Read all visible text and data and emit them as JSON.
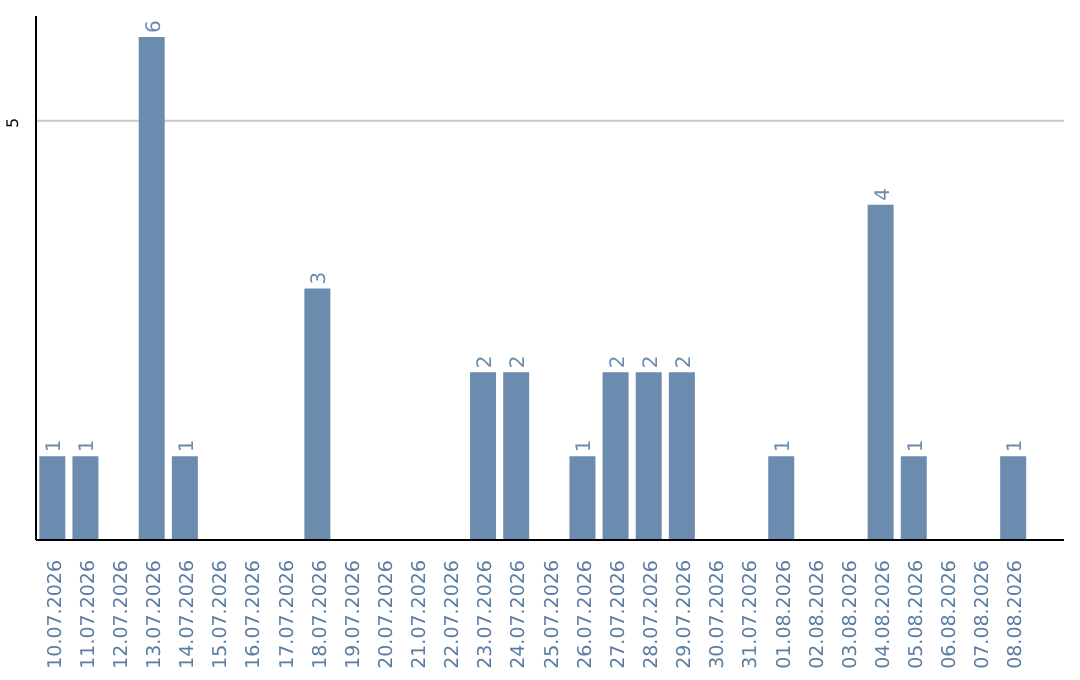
{
  "chart_data": {
    "type": "bar",
    "categories": [
      "10.07.2026",
      "11.07.2026",
      "12.07.2026",
      "13.07.2026",
      "14.07.2026",
      "15.07.2026",
      "16.07.2026",
      "17.07.2026",
      "18.07.2026",
      "19.07.2026",
      "20.07.2026",
      "21.07.2026",
      "22.07.2026",
      "23.07.2026",
      "24.07.2026",
      "25.07.2026",
      "26.07.2026",
      "27.07.2026",
      "28.07.2026",
      "29.07.2026",
      "30.07.2026",
      "31.07.2026",
      "01.08.2026",
      "02.08.2026",
      "03.08.2026",
      "04.08.2026",
      "05.08.2026",
      "06.08.2026",
      "07.08.2026",
      "08.08.2026"
    ],
    "values": [
      1,
      1,
      0,
      6,
      1,
      0,
      0,
      0,
      3,
      0,
      0,
      0,
      0,
      2,
      2,
      0,
      1,
      2,
      2,
      2,
      0,
      0,
      1,
      0,
      0,
      4,
      1,
      0,
      0,
      1
    ],
    "value_labels": [
      "1",
      "1",
      null,
      "6",
      "1",
      null,
      null,
      null,
      "3",
      null,
      null,
      null,
      null,
      "2",
      "2",
      null,
      "1",
      "2",
      "2",
      "2",
      null,
      null,
      "1",
      null,
      null,
      "4",
      "1",
      null,
      null,
      "1"
    ],
    "color": "#6b8cae",
    "ylim": [
      0,
      6.25
    ],
    "yticks": [
      5
    ],
    "grid": "y"
  }
}
